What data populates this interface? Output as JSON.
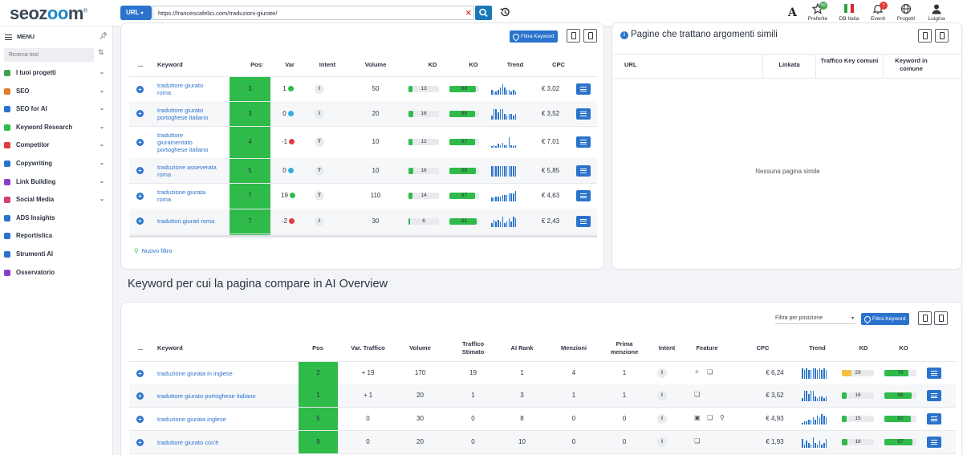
{
  "brand": {
    "logo_prefix": "seoz",
    "logo_oo": "oo",
    "logo_suffix": "m",
    "logo_reg": "®"
  },
  "search": {
    "type": "URL",
    "value": "https://francescafelici.com/traduzioni-giurate/"
  },
  "topnav": [
    {
      "label": "Preferite",
      "badge": "55"
    },
    {
      "label": "DB Italia",
      "badge": ""
    },
    {
      "label": "Eventi",
      "badge": "7"
    },
    {
      "label": "Progetti",
      "badge": ""
    },
    {
      "label": "Luigina",
      "badge": ""
    }
  ],
  "sidebar": {
    "menu_label": "MENU",
    "search_placeholder": "Ricerca tool",
    "items": [
      {
        "label": "I tuoi progetti",
        "color": "#3fa34d"
      },
      {
        "label": "SEO",
        "color": "#e47b2c"
      },
      {
        "label": "SEO for AI",
        "color": "#2a73cc"
      },
      {
        "label": "Keyword Research",
        "color": "#2ebb4a"
      },
      {
        "label": "Competitor",
        "color": "#e23b3b"
      },
      {
        "label": "Copywriting",
        "color": "#2a73cc"
      },
      {
        "label": "Link Building",
        "color": "#8b3fc9"
      },
      {
        "label": "Social Media",
        "color": "#d43c7a"
      },
      {
        "label": "ADS Insights",
        "color": "#2a73cc"
      },
      {
        "label": "Reportistica",
        "color": "#2a73cc"
      },
      {
        "label": "Strumenti AI",
        "color": "#2a73cc"
      },
      {
        "label": "Osservatorio",
        "color": "#8b3fc9"
      }
    ]
  },
  "kw_table": {
    "filter_btn": "Filtra Keyword",
    "headers": [
      "...",
      "Keyword",
      "Pos",
      "Var",
      "Intent",
      "Volume",
      "KD",
      "KO",
      "Trend",
      "CPC"
    ],
    "sort_arrow": "↑",
    "rows": [
      {
        "kw": [
          "traduttore giurato",
          "roma"
        ],
        "pos": "3",
        "var": "1",
        "var_dir": "up",
        "intent": "I",
        "volume": "50",
        "kd": "13",
        "kd_pct": 0.13,
        "ko": "88",
        "ko_pct": 0.88,
        "cpc": "€ 3,02",
        "trend": [
          3,
          2,
          2,
          3,
          4,
          6,
          4,
          3,
          3,
          2,
          3,
          2
        ]
      },
      {
        "kw": [
          "traduttore giurato",
          "portoghese italiano"
        ],
        "pos": "3",
        "var": "0",
        "var_dir": "eq",
        "intent": "I",
        "volume": "20",
        "kd": "16",
        "kd_pct": 0.16,
        "ko": "86",
        "ko_pct": 0.86,
        "cpc": "€ 3,52",
        "trend": [
          2,
          6,
          6,
          4,
          6,
          6,
          3,
          2,
          3,
          3,
          2,
          3
        ]
      },
      {
        "kw": [
          "traduttore",
          "giuramentato",
          "portoghese italiano"
        ],
        "pos": "4",
        "var": "-1",
        "var_dir": "down",
        "intent": "T",
        "volume": "10",
        "kd": "12",
        "kd_pct": 0.12,
        "ko": "87",
        "ko_pct": 0.87,
        "cpc": "€ 7,01",
        "trend": [
          1,
          2,
          1,
          3,
          2,
          4,
          2,
          2,
          8,
          2,
          1,
          2
        ]
      },
      {
        "kw": [
          "traduzione asseverata",
          "roma"
        ],
        "pos": "5",
        "var": "0",
        "var_dir": "eq",
        "intent": "T",
        "volume": "10",
        "kd": "16",
        "kd_pct": 0.16,
        "ko": "88",
        "ko_pct": 0.88,
        "cpc": "€ 5,85",
        "trend": [
          7,
          7,
          7,
          7,
          7,
          7,
          7,
          7,
          7,
          7,
          7,
          7
        ]
      },
      {
        "kw": [
          "traduzione giurata",
          "roma"
        ],
        "pos": "7",
        "var": "19",
        "var_dir": "up",
        "intent": "T",
        "volume": "110",
        "kd": "14",
        "kd_pct": 0.14,
        "ko": "87",
        "ko_pct": 0.87,
        "cpc": "€ 4,63",
        "trend": [
          3,
          3,
          4,
          4,
          4,
          5,
          5,
          5,
          6,
          6,
          6,
          8
        ]
      },
      {
        "kw": [
          "traduttori giurati roma"
        ],
        "pos": "7",
        "var": "-2",
        "var_dir": "down",
        "intent": "I",
        "volume": "30",
        "kd": "6",
        "kd_pct": 0.06,
        "ko": "91",
        "ko_pct": 0.91,
        "cpc": "€ 2,43",
        "trend": [
          2,
          4,
          3,
          4,
          3,
          6,
          2,
          3,
          5,
          3,
          6,
          5
        ]
      }
    ],
    "new_filter": "Nuovo filtro"
  },
  "similar": {
    "title": "Pagine che trattano argomenti simili",
    "headers": [
      "URL",
      "Linkata",
      "Traffico Key comuni",
      "Keyword in comune"
    ],
    "empty": "Nessuna pagina simile"
  },
  "ai_section": {
    "title": "Keyword per cui la pagina compare in AI Overview",
    "filter_pos": "Filtra per posizione",
    "filter_btn": "Filtra Keyword",
    "headers": [
      "...",
      "Keyword",
      "Pos",
      "Var. Traffico",
      "Volume",
      "Traffico Stimato",
      "AI Rank",
      "Menzioni",
      "Prima menzione",
      "Intent",
      "Feature",
      "CPC",
      "Trend",
      "KD",
      "KO"
    ],
    "rows": [
      {
        "kw": "traduzione giurata in inglese",
        "pos": "2",
        "var_traffico": "+ 19",
        "volume": "170",
        "traffico": "19",
        "ai_rank": "1",
        "menzioni": "4",
        "prima": "1",
        "intent": "I",
        "features": [
          "✧",
          "❏"
        ],
        "cpc": "€ 6,24",
        "kd": "29",
        "kd_pct": 0.29,
        "kd_color": "#f5c242",
        "ko": "76",
        "ko_pct": 0.76,
        "trend": [
          6,
          5,
          6,
          5,
          5,
          6,
          6,
          5,
          6,
          5,
          6,
          5
        ]
      },
      {
        "kw": "traduttore giurato portoghese italiano",
        "pos": "1",
        "var_traffico": "+ 1",
        "volume": "20",
        "traffico": "1",
        "ai_rank": "3",
        "menzioni": "1",
        "prima": "1",
        "intent": "I",
        "features": [
          "❏"
        ],
        "cpc": "€ 3,52",
        "kd": "16",
        "kd_pct": 0.16,
        "kd_color": "#2ebb4a",
        "ko": "86",
        "ko_pct": 0.86,
        "trend": [
          2,
          6,
          6,
          4,
          6,
          6,
          3,
          2,
          3,
          3,
          2,
          3
        ]
      },
      {
        "kw": "traduzione giurata inglese",
        "pos": "5",
        "var_traffico": "0",
        "volume": "30",
        "traffico": "0",
        "ai_rank": "8",
        "menzioni": "0",
        "prima": "0",
        "intent": "I",
        "features": [
          "▣",
          "❏",
          "⚲"
        ],
        "cpc": "€ 4,93",
        "kd": "15",
        "kd_pct": 0.15,
        "kd_color": "#2ebb4a",
        "ko": "82",
        "ko_pct": 0.82,
        "trend": [
          1,
          2,
          2,
          3,
          3,
          4,
          3,
          5,
          4,
          6,
          5,
          4
        ]
      },
      {
        "kw": "traduttore giurato cos'è",
        "pos": "9",
        "var_traffico": "0",
        "volume": "20",
        "traffico": "0",
        "ai_rank": "10",
        "menzioni": "0",
        "prima": "0",
        "intent": "I",
        "features": [
          "❏"
        ],
        "cpc": "€ 1,93",
        "kd": "18",
        "kd_pct": 0.18,
        "kd_color": "#2ebb4a",
        "ko": "87",
        "ko_pct": 0.87,
        "trend": [
          5,
          2,
          4,
          3,
          2,
          6,
          3,
          2,
          4,
          2,
          3,
          5
        ]
      }
    ]
  }
}
